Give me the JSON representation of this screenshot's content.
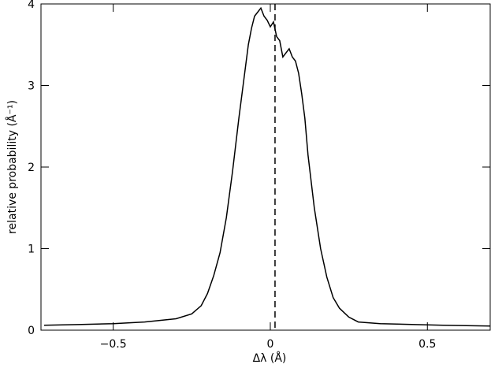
{
  "chart_data": {
    "type": "line",
    "xlabel": "Δλ (Å)",
    "ylabel": "relative probability (Å⁻¹)",
    "xlim": [
      -0.73,
      0.7
    ],
    "ylim": [
      0,
      4
    ],
    "xticks": [
      {
        "value": -0.5,
        "label": "−0.5"
      },
      0,
      0.5
    ],
    "yticks": [
      0,
      1,
      2,
      3,
      4
    ],
    "vline_x": 0.015,
    "series": [
      {
        "color": "#000000",
        "x": [
          -0.72,
          -0.6,
          -0.5,
          -0.4,
          -0.3,
          -0.25,
          -0.22,
          -0.2,
          -0.18,
          -0.16,
          -0.14,
          -0.12,
          -0.1,
          -0.08,
          -0.07,
          -0.06,
          -0.05,
          -0.04,
          -0.03,
          -0.02,
          -0.01,
          0.0,
          0.01,
          0.02,
          0.03,
          0.04,
          0.05,
          0.06,
          0.07,
          0.08,
          0.09,
          0.1,
          0.11,
          0.12,
          0.14,
          0.16,
          0.18,
          0.2,
          0.22,
          0.25,
          0.28,
          0.35,
          0.45,
          0.55,
          0.7
        ],
        "values": [
          0.06,
          0.07,
          0.08,
          0.1,
          0.14,
          0.2,
          0.3,
          0.45,
          0.67,
          0.95,
          1.38,
          1.95,
          2.6,
          3.2,
          3.5,
          3.7,
          3.85,
          3.9,
          3.95,
          3.85,
          3.8,
          3.72,
          3.78,
          3.6,
          3.55,
          3.35,
          3.4,
          3.45,
          3.35,
          3.3,
          3.15,
          2.9,
          2.6,
          2.15,
          1.5,
          1.0,
          0.65,
          0.4,
          0.27,
          0.16,
          0.1,
          0.08,
          0.07,
          0.06,
          0.05
        ]
      }
    ]
  }
}
